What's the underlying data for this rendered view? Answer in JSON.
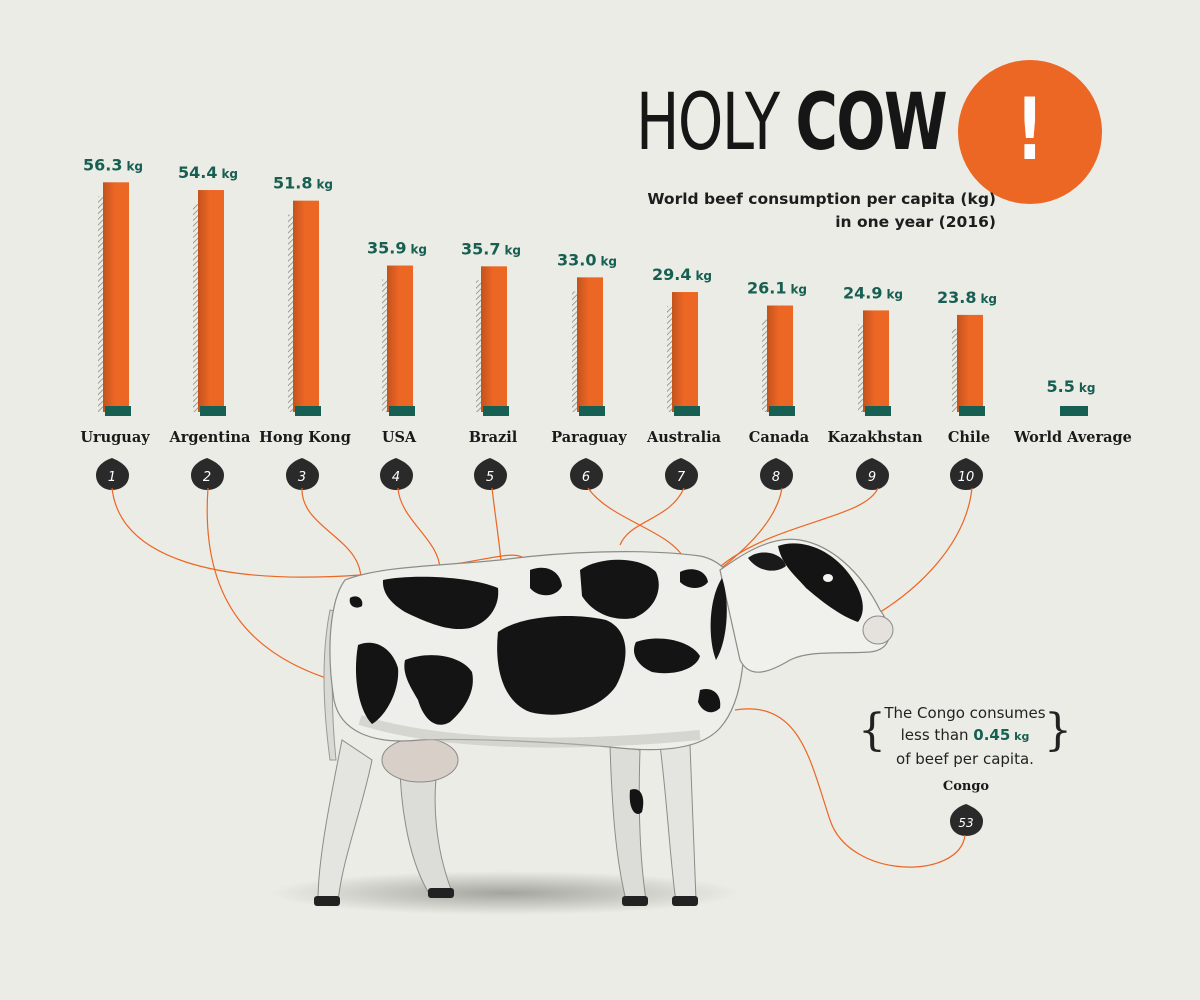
{
  "title": {
    "part1": "HOLY ",
    "part2": "COW",
    "exclaim": "!"
  },
  "subtitle": {
    "line1": "World beef consumption per capita (kg)",
    "line2": "in one year (2016)"
  },
  "note": {
    "pre": "The Congo consumes",
    "mid_pre": "less than ",
    "value": "0.45",
    "unit": " kg",
    "post": "of beef per capita.",
    "country": "Congo",
    "rank": "53"
  },
  "colors": {
    "bar": "#ec6624",
    "teal": "#175f52",
    "accent_circle": "#ec6624",
    "badge": "#2a2a2a",
    "background": "#ecece6"
  },
  "chart_data": {
    "type": "bar",
    "categories": [
      "Uruguay",
      "Argentina",
      "Hong Kong",
      "USA",
      "Brazil",
      "Paraguay",
      "Australia",
      "Canada",
      "Kazakhstan",
      "Chile",
      "World Average"
    ],
    "values": [
      56.3,
      54.4,
      51.8,
      35.9,
      35.7,
      33.0,
      29.4,
      26.1,
      24.9,
      23.8,
      5.5
    ],
    "value_labels": [
      "56.3",
      "54.4",
      "51.8",
      "35.9",
      "35.7",
      "33.0",
      "29.4",
      "26.1",
      "24.9",
      "23.8",
      "5.5"
    ],
    "unit": "kg",
    "ranks": [
      "1",
      "2",
      "3",
      "4",
      "5",
      "6",
      "7",
      "8",
      "9",
      "10"
    ],
    "title": "World beef consumption per capita (kg) in one year (2016)",
    "xlabel": "",
    "ylabel": ""
  }
}
